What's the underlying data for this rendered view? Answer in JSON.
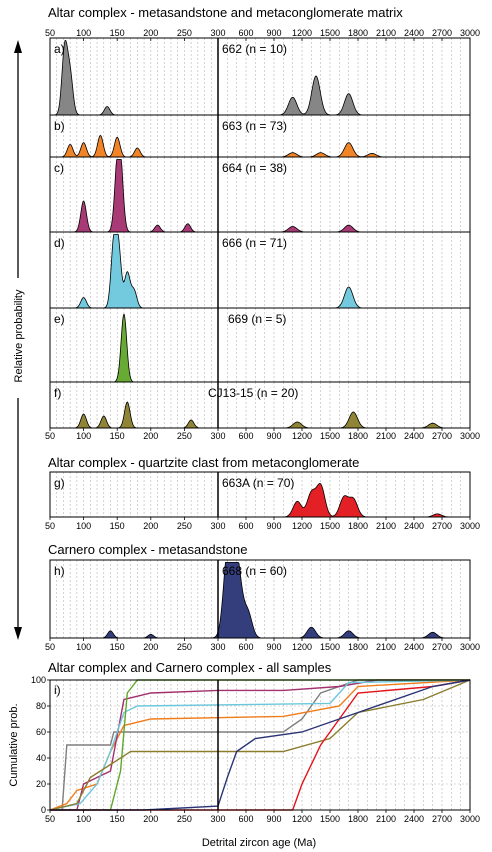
{
  "section_titles": [
    "Altar complex - metasandstone and metaconglomerate matrix",
    "Altar complex - quartzite clast from metaconglomerate",
    "Carnero complex - metasandstone",
    "Altar complex and Carnero complex - all samples"
  ],
  "y_axis_title": "Relative probability",
  "x_axis_title": "Detrital zircon age (Ma)",
  "cumulative_y_title": "Cumulative prob.",
  "colors": {
    "662": "#7f7f7f",
    "663": "#f07d1a",
    "664": "#a3306e",
    "666": "#6cc7dc",
    "669": "#5fa72a",
    "CJ13-15": "#8a7d2c",
    "663A": "#e3141b",
    "668": "#2a3476"
  },
  "chart_data": {
    "type": "area",
    "x_scale": "piecewise: 50-300 Ma linear (left half), 300-3000 Ma linear (right half)",
    "x_ticks_left": [
      "50",
      "100",
      "150",
      "200",
      "250",
      "300"
    ],
    "x_ticks_right": [
      "600",
      "900",
      "1200",
      "1500",
      "1800",
      "2100",
      "2400",
      "2700",
      "3000"
    ],
    "grid": "dashed vertical gridlines every 10 Ma (left) and 100 Ma (right)",
    "panels": [
      {
        "letter": "a)",
        "label": "662 (n = 10)",
        "sample": "662",
        "peaks": [
          [
            72,
            0.95
          ],
          [
            80,
            0.55
          ],
          [
            135,
            0.12
          ],
          [
            1100,
            0.25
          ],
          [
            1350,
            0.55
          ],
          [
            1700,
            0.3
          ]
        ]
      },
      {
        "letter": "b)",
        "label": "663 (n = 73)",
        "sample": "663",
        "peaks": [
          [
            80,
            0.35
          ],
          [
            100,
            0.4
          ],
          [
            125,
            0.6
          ],
          [
            150,
            0.55
          ],
          [
            180,
            0.25
          ],
          [
            1100,
            0.12
          ],
          [
            1400,
            0.12
          ],
          [
            1700,
            0.4
          ],
          [
            1950,
            0.1
          ]
        ]
      },
      {
        "letter": "c)",
        "label": "664 (n = 38)",
        "sample": "664",
        "peaks": [
          [
            100,
            0.45
          ],
          [
            150,
            0.8
          ],
          [
            155,
            0.85
          ],
          [
            210,
            0.1
          ],
          [
            255,
            0.12
          ],
          [
            1100,
            0.08
          ],
          [
            1700,
            0.1
          ]
        ]
      },
      {
        "letter": "d)",
        "label": "666 (n = 71)",
        "sample": "666",
        "peaks": [
          [
            100,
            0.15
          ],
          [
            145,
            0.9
          ],
          [
            152,
            0.8
          ],
          [
            165,
            0.5
          ],
          [
            175,
            0.25
          ],
          [
            1700,
            0.3
          ]
        ]
      },
      {
        "letter": "e)",
        "label": "669 (n = 5)",
        "sample": "669",
        "peaks": [
          [
            160,
            1.0
          ]
        ]
      },
      {
        "letter": "f)",
        "label": "CJ13-15 (n = 20)",
        "sample": "CJ13-15",
        "peaks": [
          [
            100,
            0.35
          ],
          [
            130,
            0.3
          ],
          [
            165,
            0.65
          ],
          [
            260,
            0.2
          ],
          [
            1150,
            0.15
          ],
          [
            1750,
            0.4
          ],
          [
            2600,
            0.12
          ]
        ]
      },
      {
        "letter": "g)",
        "label": "663A (n = 70)",
        "sample": "663A",
        "peaks": [
          [
            1150,
            0.4
          ],
          [
            1300,
            0.6
          ],
          [
            1400,
            0.8
          ],
          [
            1650,
            0.5
          ],
          [
            1750,
            0.45
          ],
          [
            2650,
            0.08
          ]
        ]
      },
      {
        "letter": "h)",
        "label": "668 (n = 60)",
        "sample": "668",
        "peaks": [
          [
            140,
            0.1
          ],
          [
            200,
            0.05
          ],
          [
            400,
            1.0
          ],
          [
            460,
            0.8
          ],
          [
            520,
            0.7
          ],
          [
            620,
            0.35
          ],
          [
            1300,
            0.15
          ],
          [
            1700,
            0.1
          ],
          [
            2600,
            0.08
          ]
        ]
      }
    ],
    "cumulative": {
      "letter": "i)",
      "ylabel": "Cumulative prob.",
      "y_ticks": [
        "0",
        "20",
        "40",
        "60",
        "80",
        "100"
      ],
      "ylim": [
        0,
        100
      ],
      "series": [
        {
          "sample": "662",
          "points": [
            [
              50,
              0
            ],
            [
              68,
              0
            ],
            [
              75,
              50
            ],
            [
              140,
              50
            ],
            [
              145,
              60
            ],
            [
              1000,
              60
            ],
            [
              1200,
              70
            ],
            [
              1400,
              90
            ],
            [
              1800,
              100
            ],
            [
              3000,
              100
            ]
          ]
        },
        {
          "sample": "663",
          "points": [
            [
              50,
              0
            ],
            [
              75,
              5
            ],
            [
              90,
              15
            ],
            [
              120,
              20
            ],
            [
              140,
              45
            ],
            [
              160,
              65
            ],
            [
              200,
              70
            ],
            [
              1000,
              72
            ],
            [
              1600,
              80
            ],
            [
              1800,
              95
            ],
            [
              3000,
              100
            ]
          ]
        },
        {
          "sample": "664",
          "points": [
            [
              50,
              0
            ],
            [
              90,
              0
            ],
            [
              100,
              20
            ],
            [
              140,
              30
            ],
            [
              160,
              85
            ],
            [
              200,
              90
            ],
            [
              300,
              92
            ],
            [
              1000,
              92
            ],
            [
              1600,
              95
            ],
            [
              2000,
              100
            ],
            [
              3000,
              100
            ]
          ]
        },
        {
          "sample": "666",
          "points": [
            [
              50,
              0
            ],
            [
              95,
              5
            ],
            [
              120,
              20
            ],
            [
              140,
              45
            ],
            [
              160,
              75
            ],
            [
              180,
              80
            ],
            [
              1500,
              82
            ],
            [
              1700,
              98
            ],
            [
              3000,
              100
            ]
          ]
        },
        {
          "sample": "669",
          "points": [
            [
              50,
              0
            ],
            [
              140,
              0
            ],
            [
              155,
              30
            ],
            [
              165,
              90
            ],
            [
              180,
              100
            ],
            [
              3000,
              100
            ]
          ]
        },
        {
          "sample": "CJ13-15",
          "points": [
            [
              50,
              0
            ],
            [
              90,
              5
            ],
            [
              110,
              25
            ],
            [
              140,
              35
            ],
            [
              170,
              45
            ],
            [
              280,
              45
            ],
            [
              1000,
              45
            ],
            [
              1500,
              55
            ],
            [
              1800,
              75
            ],
            [
              2500,
              85
            ],
            [
              3000,
              100
            ]
          ]
        },
        {
          "sample": "663A",
          "points": [
            [
              50,
              0
            ],
            [
              1100,
              0
            ],
            [
              1200,
              20
            ],
            [
              1400,
              50
            ],
            [
              1600,
              70
            ],
            [
              1800,
              90
            ],
            [
              2600,
              95
            ],
            [
              3000,
              100
            ]
          ]
        },
        {
          "sample": "668",
          "points": [
            [
              50,
              0
            ],
            [
              190,
              0
            ],
            [
              300,
              3
            ],
            [
              400,
              25
            ],
            [
              500,
              45
            ],
            [
              700,
              55
            ],
            [
              1200,
              60
            ],
            [
              1800,
              75
            ],
            [
              2600,
              95
            ],
            [
              3000,
              100
            ]
          ]
        }
      ]
    }
  }
}
